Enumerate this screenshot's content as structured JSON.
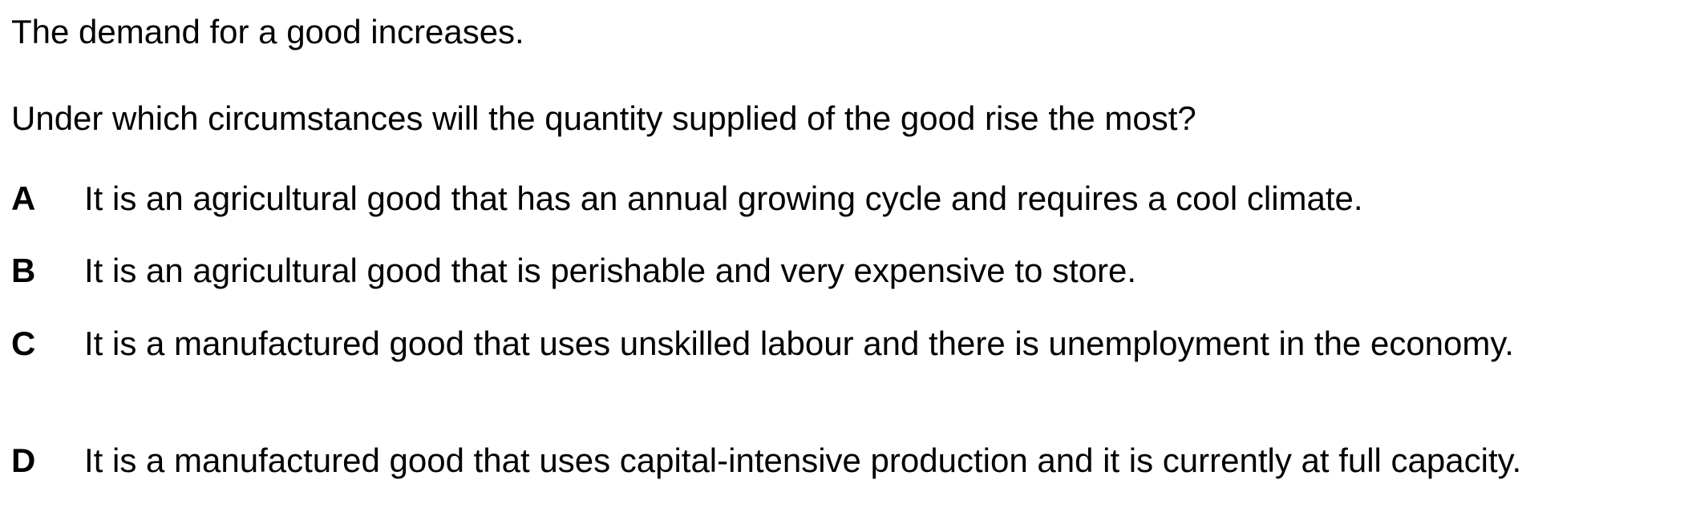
{
  "question": {
    "stem_line_1": "The demand for a good increases.",
    "stem_line_2": "Under which circumstances will the quantity supplied of the good rise the most?"
  },
  "options": [
    {
      "letter": "A",
      "text": "It is an agricultural good that has an annual growing cycle and requires a cool climate."
    },
    {
      "letter": "B",
      "text": "It is an agricultural good that is perishable and very expensive to store."
    },
    {
      "letter": "C",
      "text": "It is a manufactured good that uses unskilled labour and there is unemployment in the economy."
    },
    {
      "letter": "D",
      "text": "It is a manufactured good that uses capital-intensive production and it is currently at full capacity."
    }
  ]
}
